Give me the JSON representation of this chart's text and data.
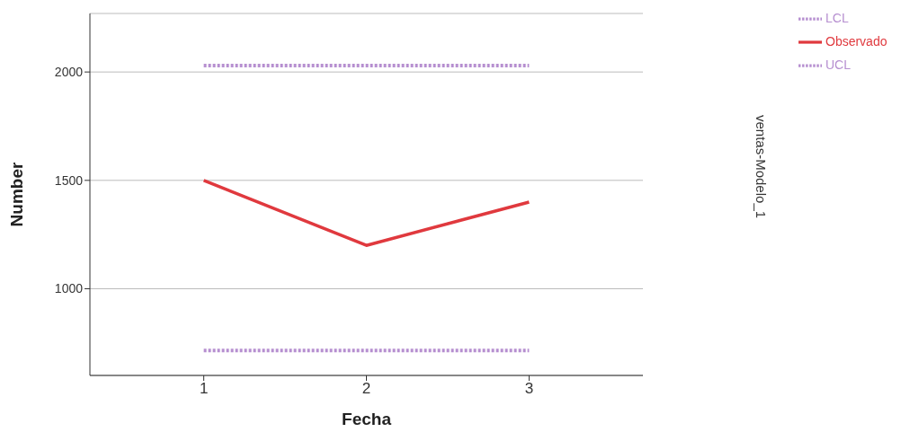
{
  "chart_data": {
    "type": "line",
    "xlabel": "Fecha",
    "ylabel": "Number",
    "annotations": [
      "ventas-Modelo_1"
    ],
    "x": [
      1,
      2,
      3
    ],
    "xlim": [
      0.3,
      3.7
    ],
    "xticks": [
      1,
      2,
      3
    ],
    "ylim": [
      600,
      2270
    ],
    "yticks": [
      1000,
      1500,
      2000
    ],
    "grid": "y",
    "legend": "top right",
    "marker": "none",
    "series": [
      {
        "name": "Observado",
        "color": "#e0393e",
        "values": [
          1500,
          1200,
          1400
        ],
        "line_style": "solid"
      },
      {
        "name": "UCL",
        "color": "#b68fd0",
        "values": [
          2030,
          2030,
          2030
        ],
        "line_style": "dotted"
      },
      {
        "name": "LCL",
        "color": "#b68fd0",
        "values": [
          715,
          715,
          715
        ],
        "line_style": "dotted"
      }
    ]
  }
}
